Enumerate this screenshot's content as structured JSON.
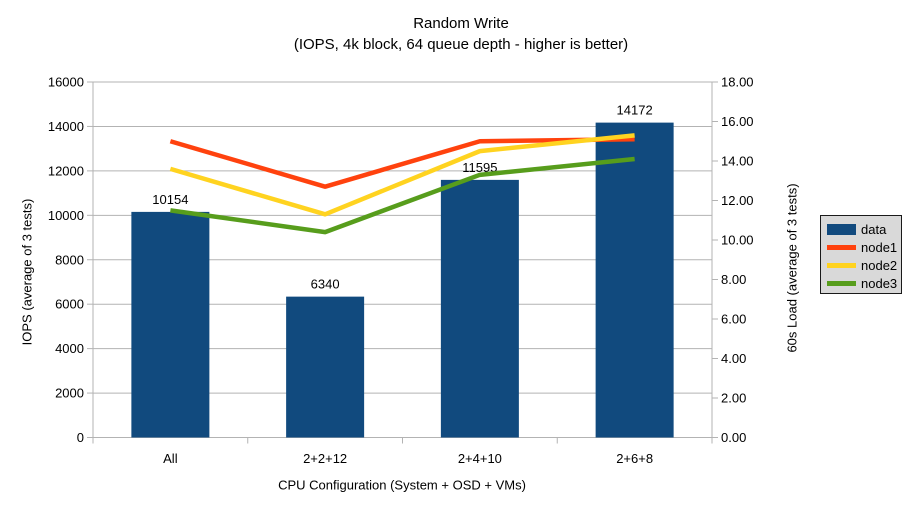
{
  "chart_data": {
    "type": "bar+line",
    "title": "Random Write",
    "subtitle": "(IOPS, 4k block, 64 queue depth - higher is better)",
    "categories": [
      "All",
      "2+2+12",
      "2+4+10",
      "2+6+8"
    ],
    "bar_series": [
      {
        "name": "data",
        "values": [
          10154,
          6340,
          11595,
          14172
        ],
        "color": "#114A7E",
        "axis": "left"
      }
    ],
    "line_series": [
      {
        "name": "node1",
        "values": [
          15.0,
          12.7,
          15.0,
          15.1
        ],
        "color": "#FF420E",
        "axis": "right"
      },
      {
        "name": "node2",
        "values": [
          13.6,
          11.3,
          14.5,
          15.3
        ],
        "color": "#FFD320",
        "axis": "right"
      },
      {
        "name": "node3",
        "values": [
          11.5,
          10.4,
          13.3,
          14.1
        ],
        "color": "#579D1C",
        "axis": "right"
      }
    ],
    "left_axis": {
      "label": "IOPS (average of 3 tests)",
      "min": 0,
      "max": 16000,
      "step": 2000,
      "ticks": [
        "0",
        "2000",
        "4000",
        "6000",
        "8000",
        "10000",
        "12000",
        "14000",
        "16000"
      ]
    },
    "right_axis": {
      "label": "60s Load (average of 3 tests)",
      "min": 0,
      "max": 18,
      "step": 2,
      "ticks": [
        "0.00",
        "2.00",
        "4.00",
        "6.00",
        "8.00",
        "10.00",
        "12.00",
        "14.00",
        "16.00",
        "18.00"
      ]
    },
    "x_axis": {
      "label": "CPU Configuration (System + OSD + VMs)"
    },
    "grid": "horizontal-only",
    "grid_color": "#B3B3B3",
    "legend_position": "right"
  },
  "legend": {
    "items": [
      {
        "label": "data",
        "color": "#114A7E",
        "type": "bar"
      },
      {
        "label": "node1",
        "color": "#FF420E",
        "type": "line"
      },
      {
        "label": "node2",
        "color": "#FFD320",
        "type": "line"
      },
      {
        "label": "node3",
        "color": "#579D1C",
        "type": "line"
      }
    ]
  }
}
